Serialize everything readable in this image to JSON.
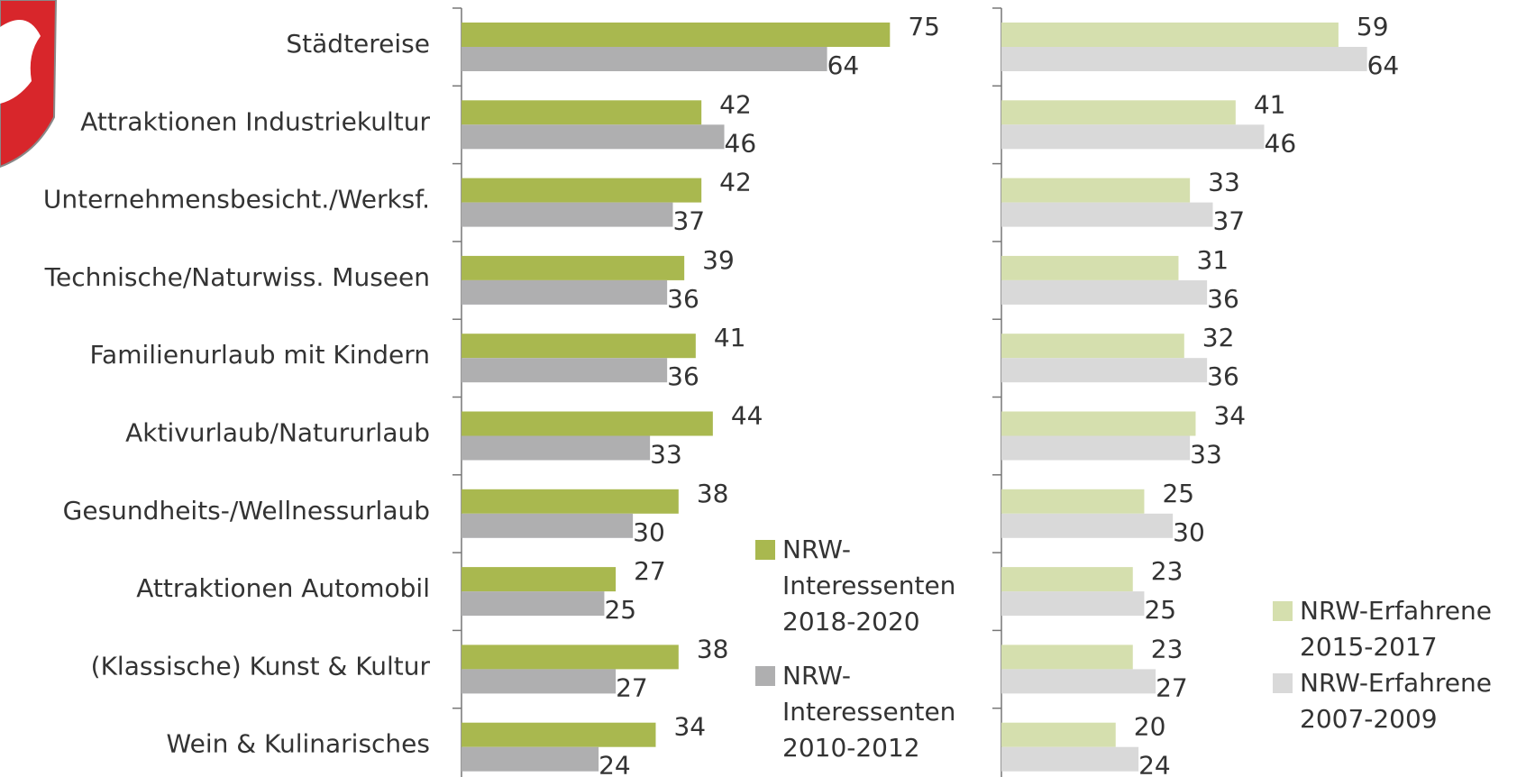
{
  "chart_data": [
    {
      "type": "bar",
      "orientation": "horizontal",
      "categories": [
        "Städtereise",
        "Attraktionen Industriekultur",
        "Unternehmensbesicht./Werksf.",
        "Technische/Naturwiss. Museen",
        "Familienurlaub mit Kindern",
        "Aktivurlaub/Natururlaub",
        "Gesundheits-/Wellnessurlaub",
        "Attraktionen Automobil",
        "(Klassische) Kunst & Kultur",
        "Wein & Kulinarisches"
      ],
      "xlim": [
        0,
        80
      ],
      "series": [
        {
          "name": "NRW-Interessenten 2018-2020",
          "color": "#a9b84f",
          "values": [
            75,
            42,
            42,
            39,
            41,
            44,
            38,
            27,
            38,
            34
          ]
        },
        {
          "name": "NRW-Interessenten 2010-2012",
          "color": "#afafb0",
          "values": [
            64,
            46,
            37,
            36,
            36,
            33,
            30,
            25,
            27,
            24
          ]
        }
      ]
    },
    {
      "type": "bar",
      "orientation": "horizontal",
      "xlim": [
        0,
        80
      ],
      "series": [
        {
          "name": "NRW-Erfahrene 2015-2017",
          "color": "#d5dfae",
          "values": [
            59,
            41,
            33,
            31,
            32,
            34,
            25,
            23,
            23,
            20
          ]
        },
        {
          "name": "NRW-Erfahrene 2007-2009",
          "color": "#d9d9d9",
          "values": [
            64,
            46,
            37,
            36,
            36,
            33,
            30,
            25,
            27,
            24
          ]
        }
      ]
    }
  ]
}
